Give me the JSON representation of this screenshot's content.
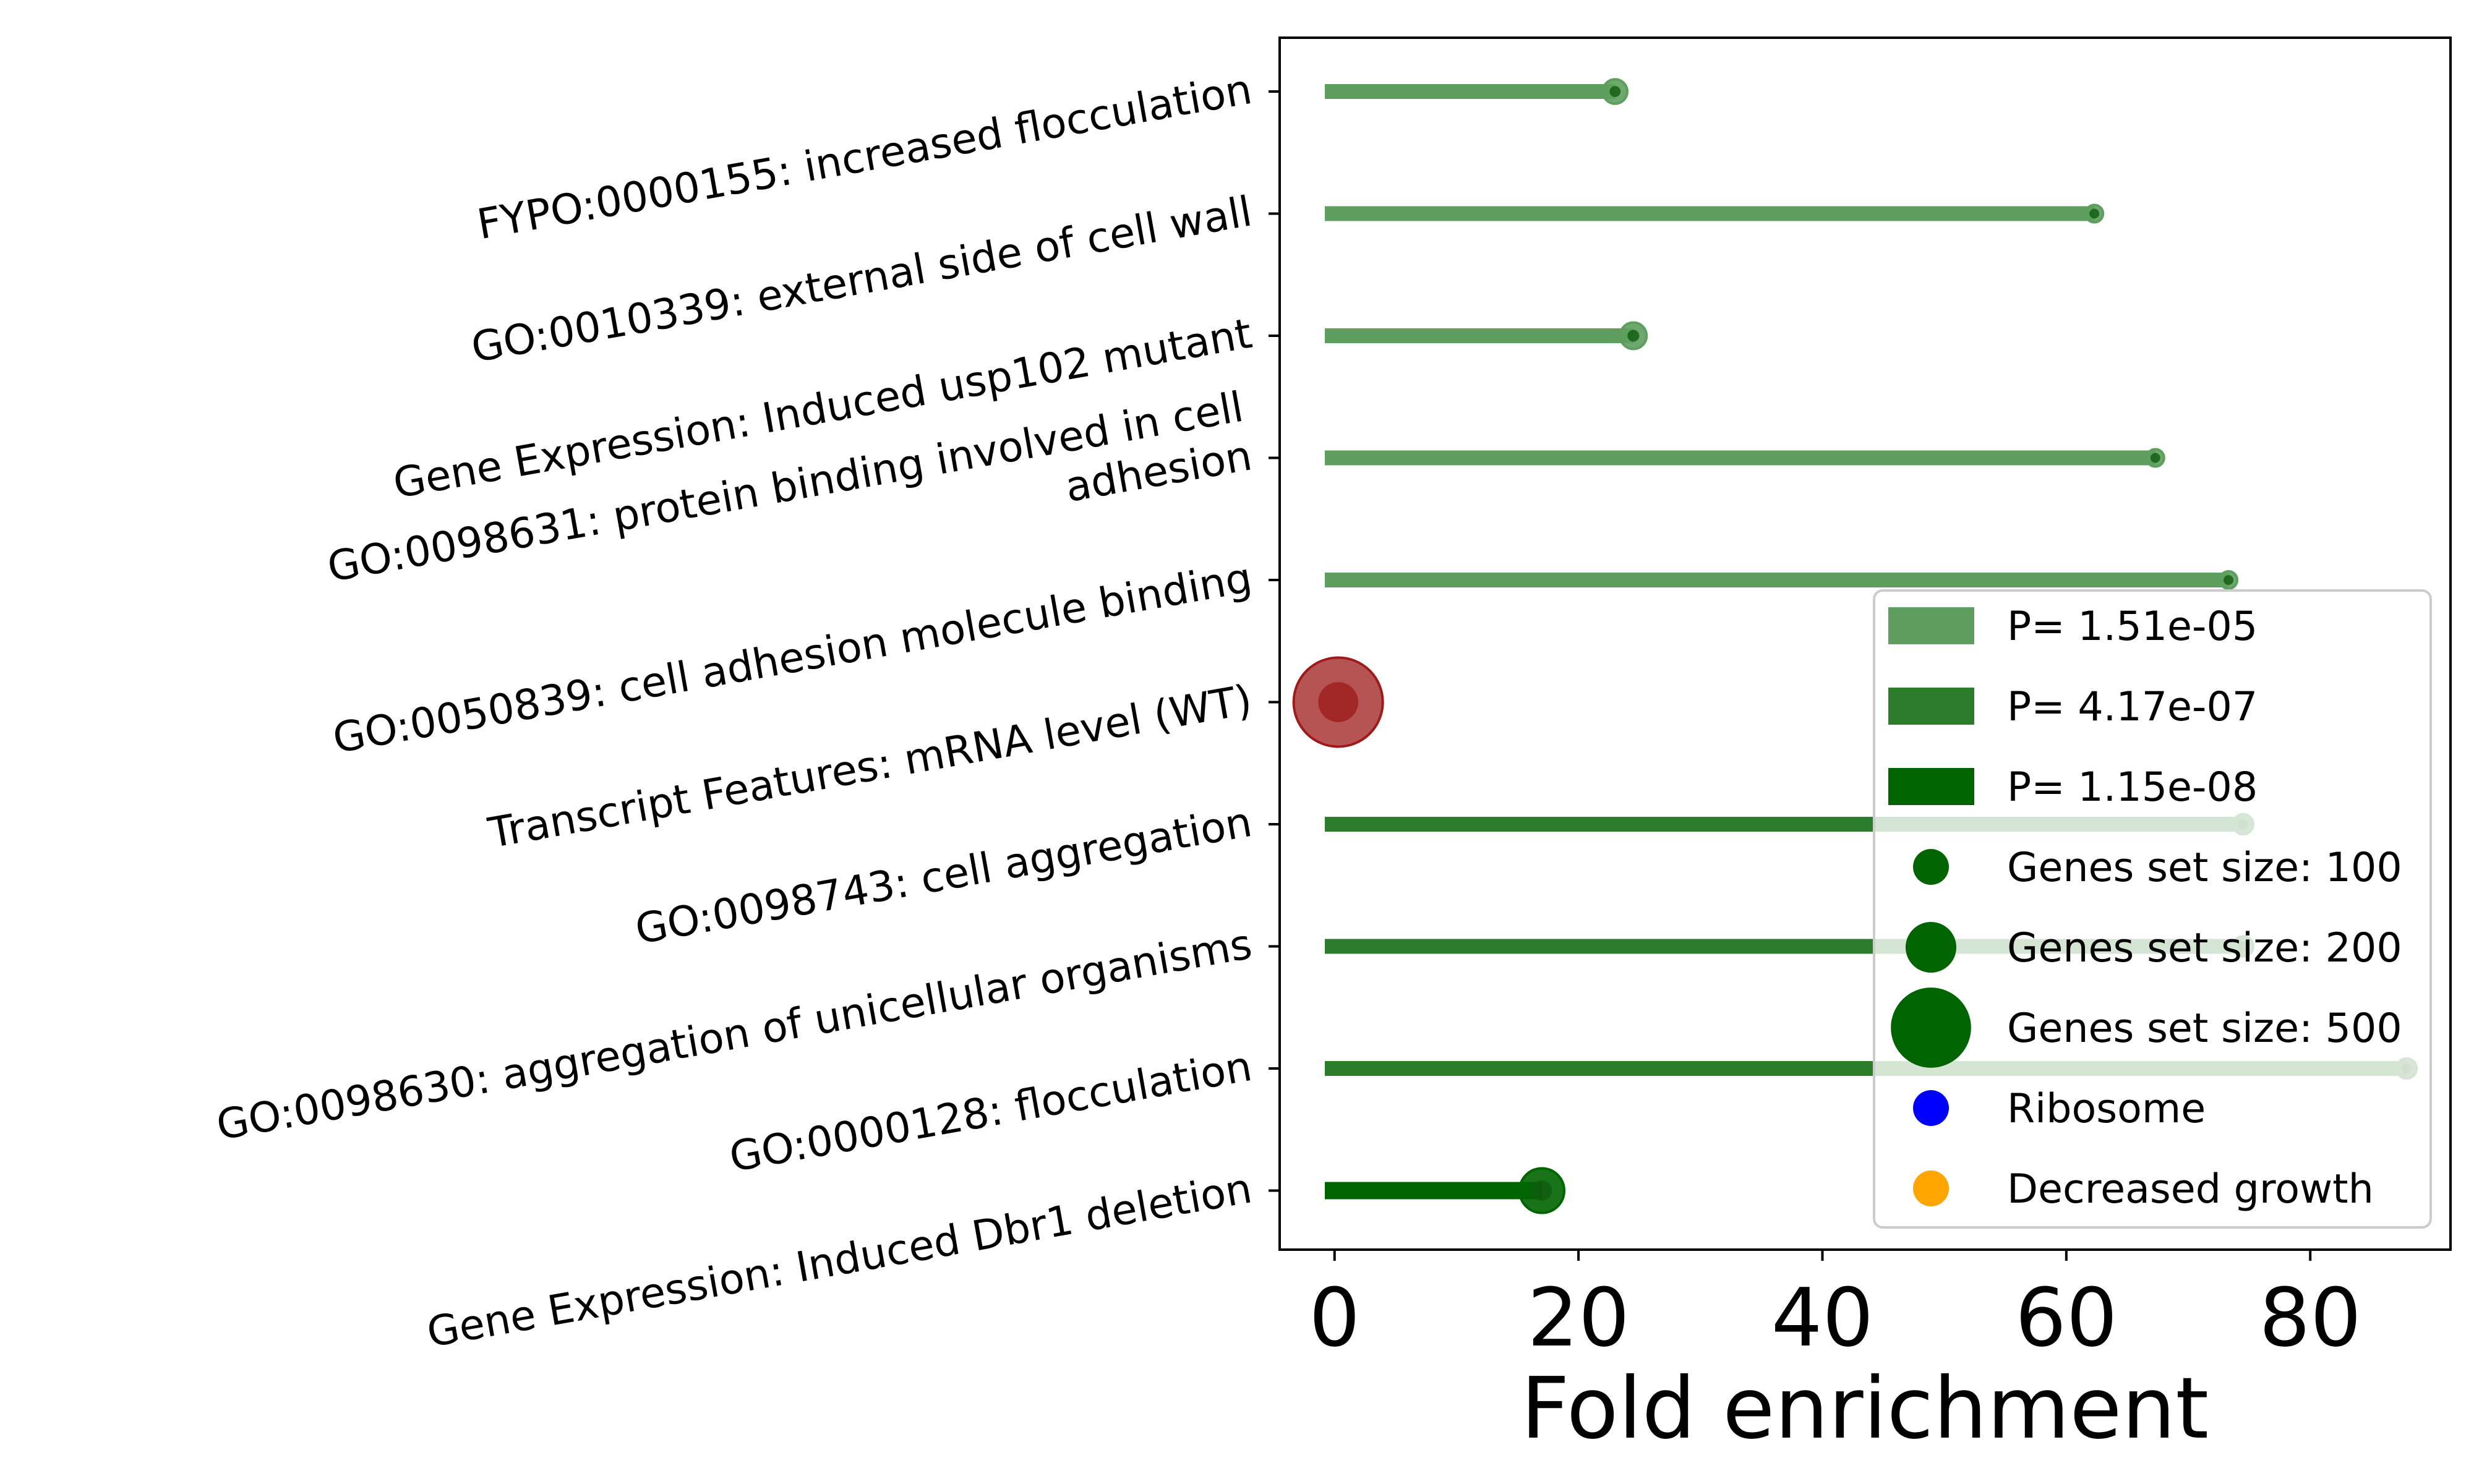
{
  "chart_data": {
    "type": "lollipop",
    "xlabel": "Fold enrichment",
    "xlim": [
      -4.5,
      91.5
    ],
    "xticks": [
      0,
      20,
      40,
      60,
      80
    ],
    "grid": false,
    "legend_position": "lower right",
    "colors": {
      "p_1.51e-05": "#5e9e5e",
      "p_4.17e-07": "#2b7c2b",
      "p_1.15e-08": "#006400",
      "highlight": "#9e1b1b"
    },
    "categories": [
      "FYPO:0000155: increased flocculation",
      "GO:0010339: external side of cell wall",
      "Gene Expression: Induced usp102 mutant",
      "GO:0098631: protein binding involved in cell\nadhesion",
      "GO:0050839: cell adhesion molecule binding",
      "Transcript Features: mRNA level (WT)",
      "GO:0098743: cell aggregation",
      "GO:0098630: aggregation of unicellular organisms",
      "GO:0000128: flocculation",
      "Gene Expression: Induced Dbr1 deletion"
    ],
    "values": [
      23,
      62.3,
      24.5,
      67.3,
      73.3,
      0.3,
      74.5,
      74.5,
      87.9,
      17
    ],
    "p_class": [
      "p_1.51e-05",
      "p_1.51e-05",
      "p_1.51e-05",
      "p_1.51e-05",
      "p_1.51e-05",
      "highlight",
      "p_4.17e-07",
      "p_4.17e-07",
      "p_4.17e-07",
      "p_1.15e-08"
    ],
    "gene_set_sizes": [
      60,
      25,
      70,
      30,
      25,
      1000,
      40,
      40,
      40,
      200
    ],
    "legend": [
      {
        "kind": "patch",
        "label": "P= 1.51e-05",
        "color": "#5e9e5e"
      },
      {
        "kind": "patch",
        "label": "P= 4.17e-07",
        "color": "#2b7c2b"
      },
      {
        "kind": "patch",
        "label": "P= 1.15e-08",
        "color": "#006400"
      },
      {
        "kind": "dot",
        "label": "Genes set size: 100",
        "color": "#006400",
        "size": 100
      },
      {
        "kind": "dot",
        "label": "Genes set size: 200",
        "color": "#006400",
        "size": 200
      },
      {
        "kind": "dot",
        "label": "Genes set size: 500",
        "color": "#006400",
        "size": 500
      },
      {
        "kind": "dot",
        "label": "Ribosome",
        "color": "#0000ff",
        "size": 100
      },
      {
        "kind": "dot",
        "label": "Decreased growth",
        "color": "#ffa500",
        "size": 100
      }
    ]
  }
}
